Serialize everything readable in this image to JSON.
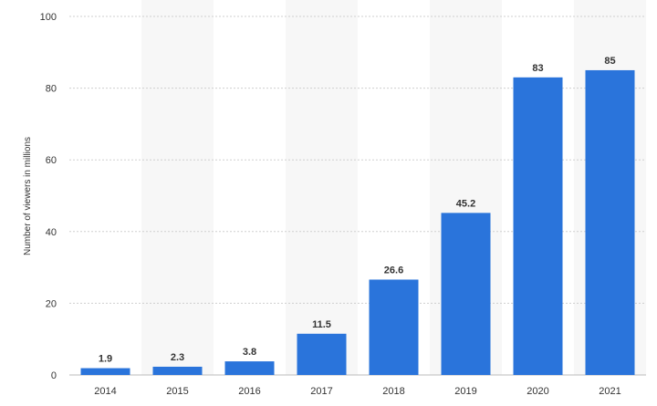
{
  "chart_data": {
    "type": "bar",
    "categories": [
      "2014",
      "2015",
      "2016",
      "2017",
      "2018",
      "2019",
      "2020",
      "2021"
    ],
    "values": [
      1.9,
      2.3,
      3.8,
      11.5,
      26.6,
      45.2,
      83,
      85
    ],
    "value_labels": [
      "1.9",
      "2.3",
      "3.8",
      "11.5",
      "26.6",
      "45.2",
      "83",
      "85"
    ],
    "title": "",
    "xlabel": "",
    "ylabel": "Number of viewers in millions",
    "ylim": [
      0,
      100
    ],
    "yticks": [
      0,
      20,
      40,
      60,
      80,
      100
    ],
    "grid": true,
    "legend": "none",
    "colors": {
      "bar": "#2a74db",
      "band": "#f7f7f7",
      "grid": "#cfcfcf",
      "text": "#333333"
    }
  }
}
